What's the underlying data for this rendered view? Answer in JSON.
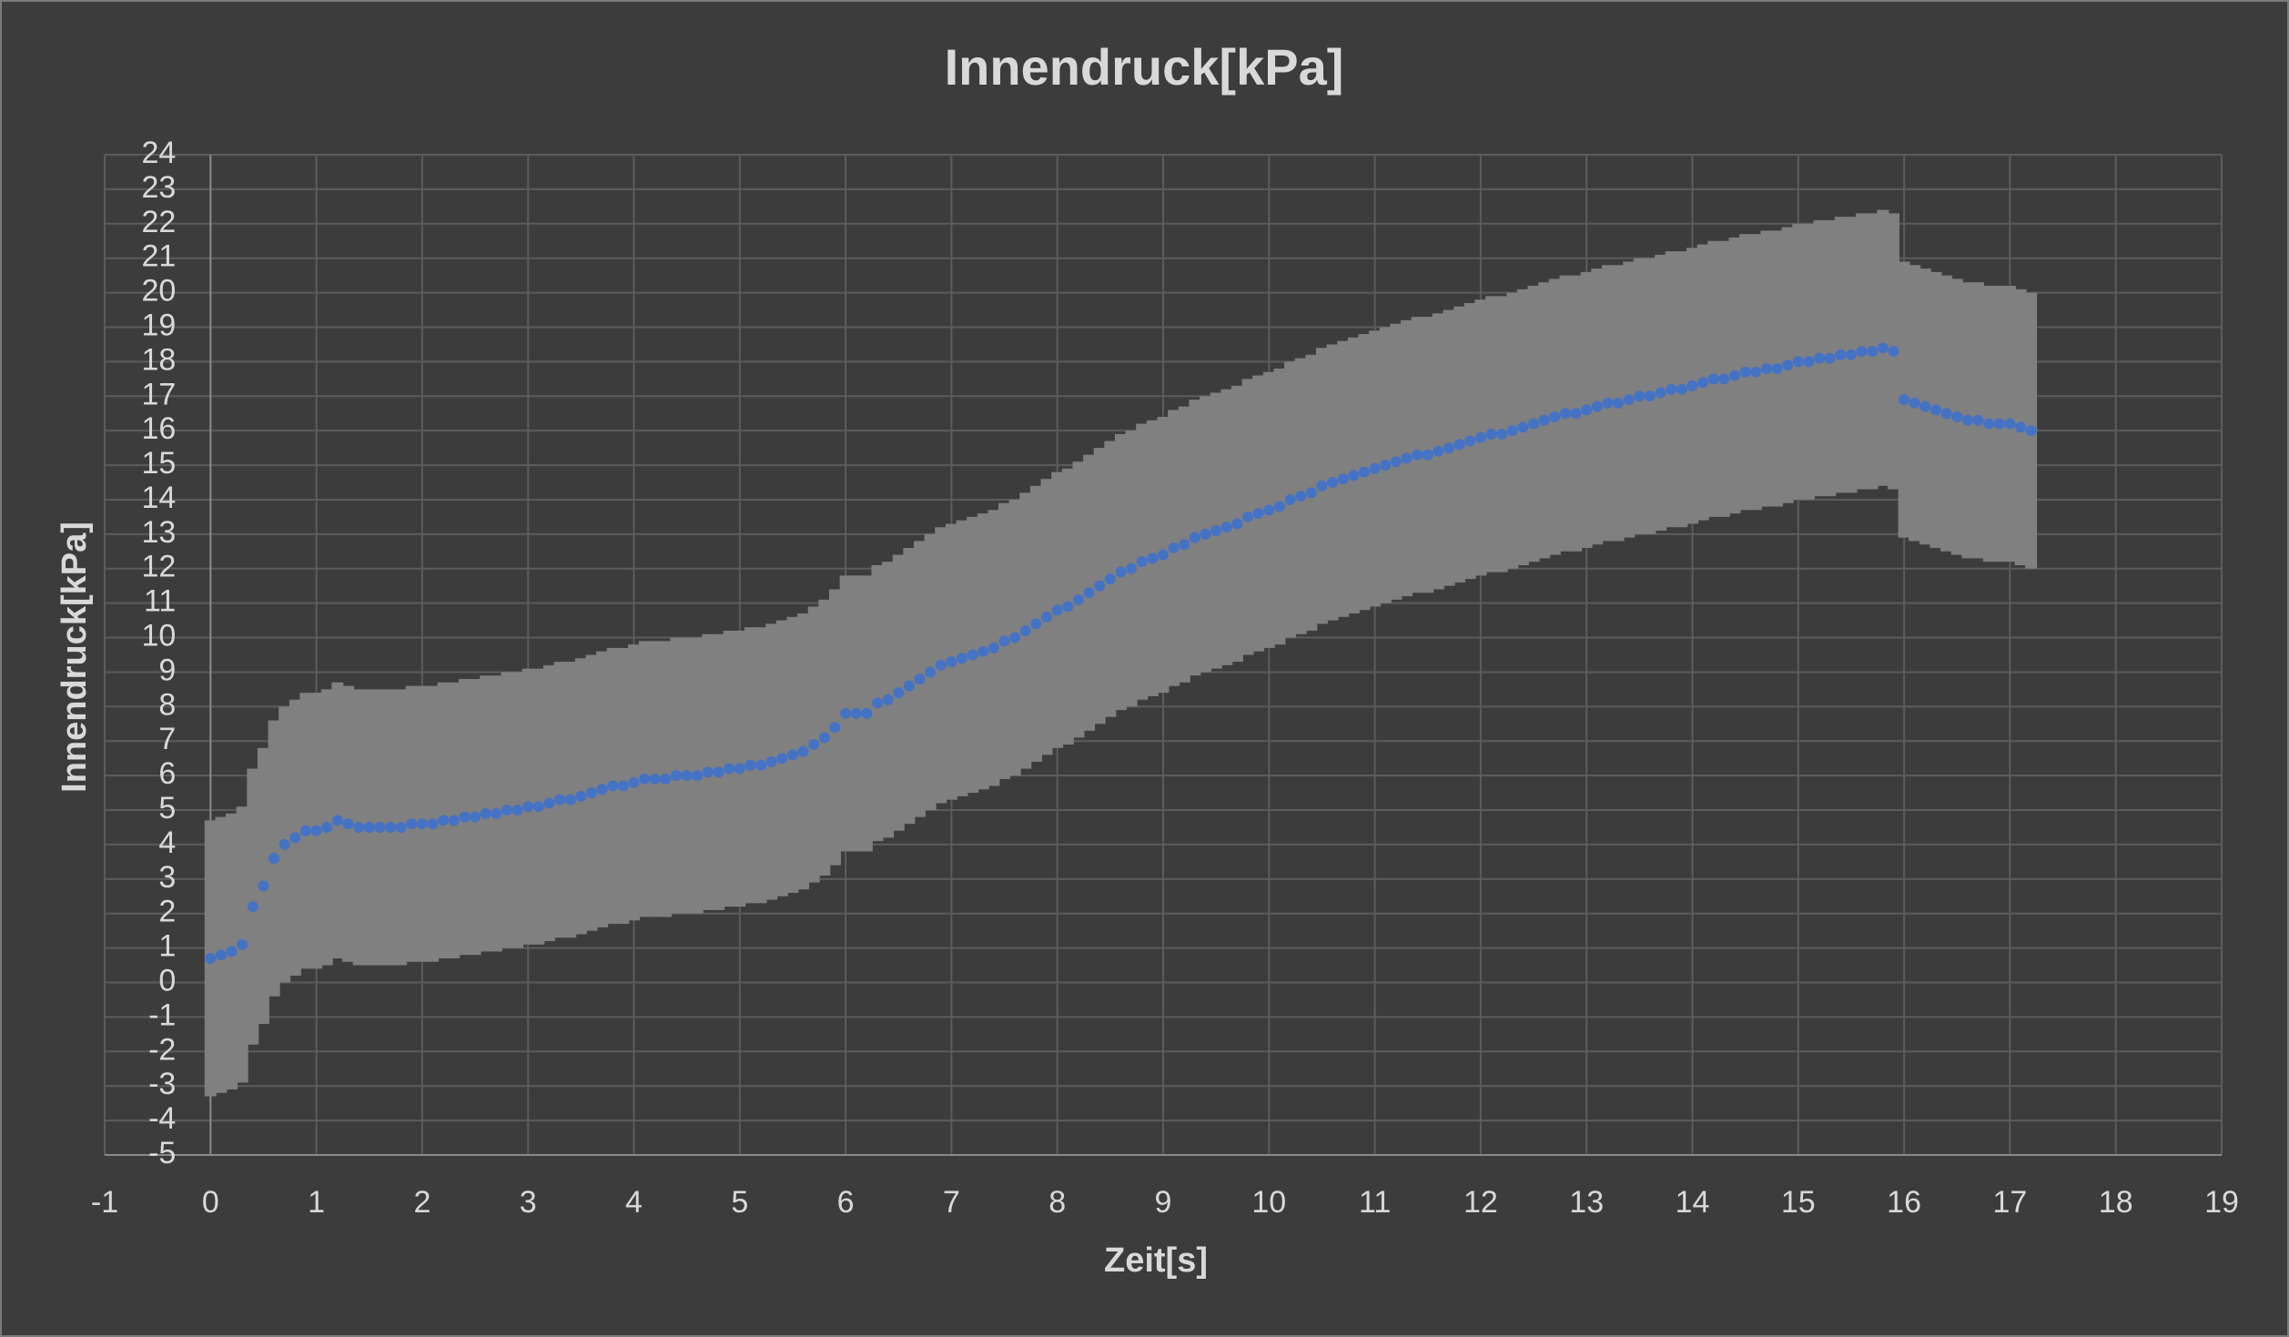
{
  "chart_data": {
    "type": "scatter",
    "title": "Innendruck[kPa]",
    "x_label": "Zeit[s]",
    "y_label": "Innendruck[kPa]",
    "xlim": [
      -1,
      19
    ],
    "ylim": [
      -5,
      24
    ],
    "xticks": [
      -1,
      0,
      1,
      2,
      3,
      4,
      5,
      6,
      7,
      8,
      9,
      10,
      11,
      12,
      13,
      14,
      15,
      16,
      17,
      18,
      19
    ],
    "yticks": [
      -5,
      -4,
      -3,
      -2,
      -1,
      0,
      1,
      2,
      3,
      4,
      5,
      6,
      7,
      8,
      9,
      10,
      11,
      12,
      13,
      14,
      15,
      16,
      17,
      18,
      19,
      20,
      21,
      22,
      23,
      24
    ],
    "grid": true,
    "error": 4,
    "error_color": "#808080",
    "x": [
      0,
      0.1,
      0.2,
      0.3,
      0.4,
      0.5,
      0.6,
      0.7,
      0.8,
      0.9,
      1,
      1.1,
      1.2,
      1.3,
      1.4,
      1.5,
      1.6,
      1.7,
      1.8,
      1.9,
      2,
      2.1,
      2.2,
      2.3,
      2.4,
      2.5,
      2.6,
      2.7,
      2.8,
      2.9,
      3,
      3.1,
      3.2,
      3.3,
      3.4,
      3.5,
      3.6,
      3.7,
      3.8,
      3.9,
      4,
      4.1,
      4.2,
      4.3,
      4.4,
      4.5,
      4.6,
      4.7,
      4.8,
      4.9,
      5,
      5.1,
      5.2,
      5.3,
      5.4,
      5.5,
      5.6,
      5.7,
      5.8,
      5.9,
      6,
      6.1,
      6.2,
      6.3,
      6.4,
      6.5,
      6.6,
      6.7,
      6.8,
      6.9,
      7,
      7.1,
      7.2,
      7.3,
      7.4,
      7.5,
      7.6,
      7.7,
      7.8,
      7.9,
      8,
      8.1,
      8.2,
      8.3,
      8.4,
      8.5,
      8.6,
      8.7,
      8.8,
      8.9,
      9,
      9.1,
      9.2,
      9.3,
      9.4,
      9.5,
      9.6,
      9.7,
      9.8,
      9.9,
      10,
      10.1,
      10.2,
      10.3,
      10.4,
      10.5,
      10.6,
      10.7,
      10.8,
      10.9,
      11,
      11.1,
      11.2,
      11.3,
      11.4,
      11.5,
      11.6,
      11.7,
      11.8,
      11.9,
      12,
      12.1,
      12.2,
      12.3,
      12.4,
      12.5,
      12.6,
      12.7,
      12.8,
      12.9,
      13,
      13.1,
      13.2,
      13.3,
      13.4,
      13.5,
      13.6,
      13.7,
      13.8,
      13.9,
      14,
      14.1,
      14.2,
      14.3,
      14.4,
      14.5,
      14.6,
      14.7,
      14.8,
      14.9,
      15,
      15.1,
      15.2,
      15.3,
      15.4,
      15.5,
      15.6,
      15.7,
      15.8,
      15.9,
      16,
      16.1,
      16.2,
      16.3,
      16.4,
      16.5,
      16.6,
      16.7,
      16.8,
      16.9,
      17,
      17.1,
      17.2
    ],
    "series": [
      {
        "color": "#4472c4",
        "values": [
          0.7,
          0.8,
          0.9,
          1.1,
          2.2,
          2.8,
          3.6,
          4.0,
          4.2,
          4.4,
          4.4,
          4.5,
          4.7,
          4.6,
          4.5,
          4.5,
          4.5,
          4.5,
          4.5,
          4.6,
          4.6,
          4.6,
          4.7,
          4.7,
          4.8,
          4.8,
          4.9,
          4.9,
          5.0,
          5.0,
          5.1,
          5.1,
          5.2,
          5.3,
          5.3,
          5.4,
          5.5,
          5.6,
          5.7,
          5.7,
          5.8,
          5.9,
          5.9,
          5.9,
          6.0,
          6.0,
          6.0,
          6.1,
          6.1,
          6.2,
          6.2,
          6.3,
          6.3,
          6.4,
          6.5,
          6.6,
          6.7,
          6.9,
          7.1,
          7.4,
          7.8,
          7.8,
          7.8,
          8.1,
          8.2,
          8.4,
          8.6,
          8.8,
          9.0,
          9.2,
          9.3,
          9.4,
          9.5,
          9.6,
          9.7,
          9.9,
          10.0,
          10.2,
          10.4,
          10.6,
          10.8,
          10.9,
          11.1,
          11.3,
          11.5,
          11.7,
          11.9,
          12.0,
          12.2,
          12.3,
          12.4,
          12.6,
          12.7,
          12.9,
          13.0,
          13.1,
          13.2,
          13.3,
          13.5,
          13.6,
          13.7,
          13.8,
          14.0,
          14.1,
          14.2,
          14.4,
          14.5,
          14.6,
          14.7,
          14.8,
          14.9,
          15.0,
          15.1,
          15.2,
          15.3,
          15.3,
          15.4,
          15.5,
          15.6,
          15.7,
          15.8,
          15.9,
          15.9,
          16.0,
          16.1,
          16.2,
          16.3,
          16.4,
          16.5,
          16.5,
          16.6,
          16.7,
          16.8,
          16.8,
          16.9,
          17.0,
          17.0,
          17.1,
          17.2,
          17.2,
          17.3,
          17.4,
          17.5,
          17.5,
          17.6,
          17.7,
          17.7,
          17.8,
          17.8,
          17.9,
          18.0,
          18.0,
          18.1,
          18.1,
          18.2,
          18.2,
          18.3,
          18.3,
          18.4,
          18.3,
          16.9,
          16.8,
          16.7,
          16.6,
          16.5,
          16.4,
          16.3,
          16.3,
          16.2,
          16.2,
          16.2,
          16.1,
          16.0
        ]
      }
    ]
  }
}
